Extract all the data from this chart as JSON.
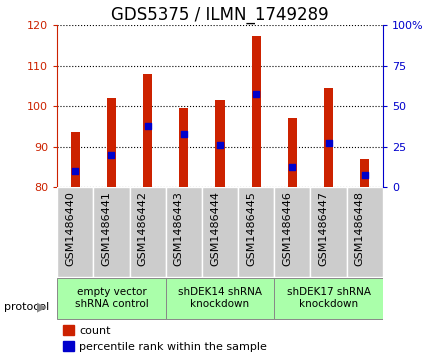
{
  "title": "GDS5375 / ILMN_1749289",
  "samples": [
    "GSM1486440",
    "GSM1486441",
    "GSM1486442",
    "GSM1486443",
    "GSM1486444",
    "GSM1486445",
    "GSM1486446",
    "GSM1486447",
    "GSM1486448"
  ],
  "count_values": [
    93.5,
    102.0,
    108.0,
    99.5,
    101.5,
    117.5,
    97.0,
    104.5,
    87.0
  ],
  "percentile_values": [
    84.0,
    88.0,
    95.0,
    93.0,
    90.5,
    103.0,
    85.0,
    91.0,
    83.0
  ],
  "ylim": [
    80,
    120
  ],
  "yticks_left": [
    80,
    90,
    100,
    110,
    120
  ],
  "right_ticks_pos": [
    80,
    90,
    100,
    110,
    120
  ],
  "right_tick_labels": [
    "0",
    "25",
    "50",
    "75",
    "100%"
  ],
  "bar_color": "#cc2200",
  "dot_color": "#0000cc",
  "bar_width": 0.25,
  "groups": [
    {
      "label": "empty vector\nshRNA control",
      "start": 0,
      "end": 3
    },
    {
      "label": "shDEK14 shRNA\nknockdown",
      "start": 3,
      "end": 6
    },
    {
      "label": "shDEK17 shRNA\nknockdown",
      "start": 6,
      "end": 9
    }
  ],
  "legend_count_label": "count",
  "legend_percentile_label": "percentile rank within the sample",
  "protocol_label": "protocol",
  "title_fontsize": 12,
  "tick_fontsize": 8,
  "label_fontsize": 8,
  "group_label_fontsize": 7.5,
  "background_color": "#ffffff",
  "plot_bg_color": "#ffffff",
  "xtick_bg_color": "#cccccc",
  "group_bg_color": "#aaffaa",
  "right_axis_color": "#0000cc",
  "left_axis_color": "#cc2200",
  "grid_color": "#000000"
}
